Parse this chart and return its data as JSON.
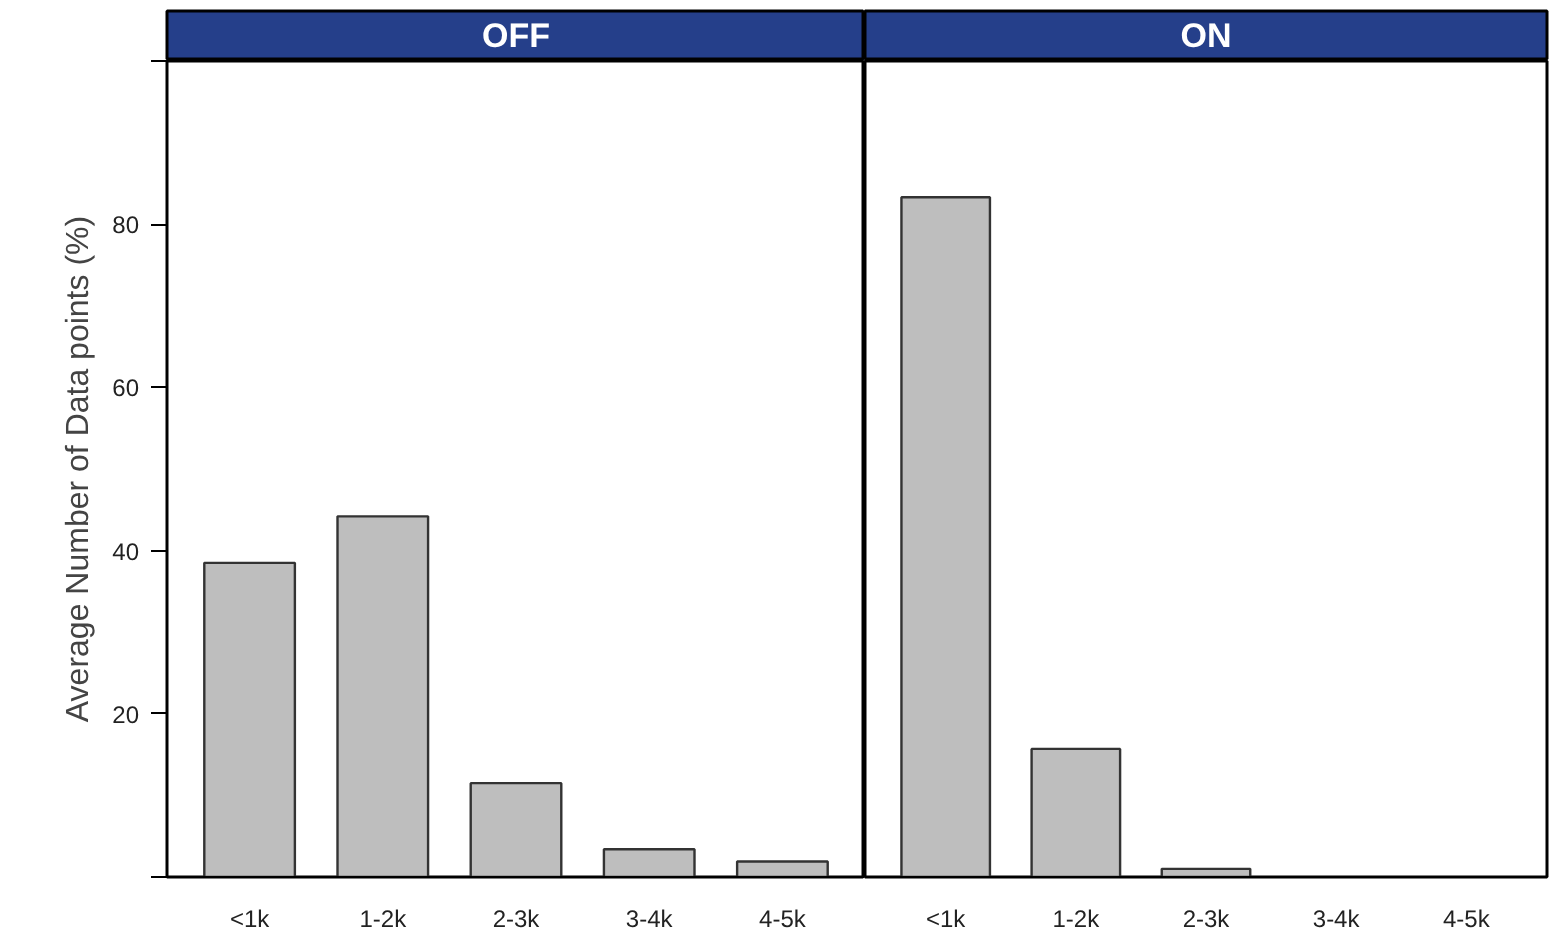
{
  "chart_data": [
    {
      "type": "bar",
      "title": "OFF",
      "ylabel": "Average Number of Data points (%)",
      "categories": [
        "<1k",
        "1-2k",
        "2-3k",
        "3-4k",
        "4-5k"
      ],
      "values": [
        38.5,
        44.2,
        11.5,
        3.4,
        1.9
      ],
      "color": "#bebebe",
      "ylim": [
        0,
        100
      ],
      "yticks": [
        {
          "value": 0,
          "label": null
        },
        20,
        40,
        60,
        80,
        {
          "value": 100,
          "label": null
        }
      ]
    },
    {
      "type": "bar",
      "title": "ON",
      "categories": [
        "<1k",
        "1-2k",
        "2-3k",
        "3-4k",
        "4-5k"
      ],
      "values": [
        83.3,
        15.7,
        1.0,
        null,
        null
      ],
      "color": "#bebebe",
      "ylim": [
        0,
        100
      ],
      "tick_labels": "x"
    }
  ]
}
